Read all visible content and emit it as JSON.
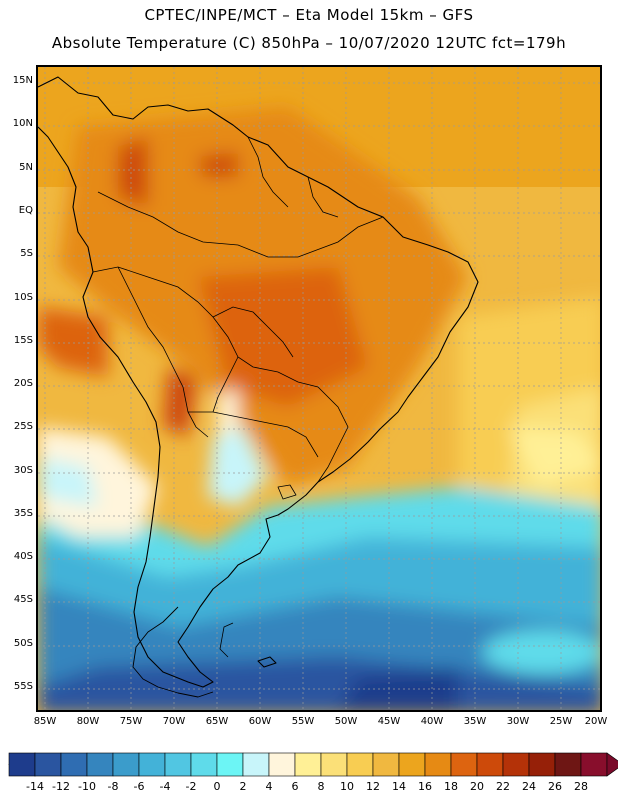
{
  "header": {
    "title_line1": "CPTEC/INPE/MCT –  Eta Model 15km – GFS",
    "title_line2": "Absolute Temperature (C) 850hPa – 10/07/2020 12UTC fct=179h"
  },
  "map": {
    "region": "South America",
    "lat_labels": [
      "15N",
      "10N",
      "5N",
      "EQ",
      "5S",
      "10S",
      "15S",
      "20S",
      "25S",
      "30S",
      "35S",
      "40S",
      "45S",
      "50S",
      "55S"
    ],
    "lon_labels": [
      "85W",
      "80W",
      "75W",
      "70W",
      "65W",
      "60W",
      "55W",
      "50W",
      "45W",
      "40W",
      "35W",
      "30W",
      "25W",
      "20W"
    ],
    "lat_values": [
      15,
      10,
      5,
      0,
      -5,
      -10,
      -15,
      -20,
      -25,
      -30,
      -35,
      -40,
      -45,
      -50,
      -55
    ],
    "lon_values": [
      -85,
      -80,
      -75,
      -70,
      -65,
      -60,
      -55,
      -50,
      -45,
      -40,
      -35,
      -30,
      -25,
      -20
    ]
  },
  "legend": {
    "labels": [
      "-14",
      "-12",
      "-10",
      "-8",
      "-6",
      "-4",
      "-2",
      "0",
      "2",
      "4",
      "6",
      "8",
      "10",
      "12",
      "14",
      "16",
      "18",
      "20",
      "22",
      "24",
      "26",
      "28"
    ],
    "colors": [
      "#1e3c8c",
      "#2a55a0",
      "#2f6db2",
      "#3585be",
      "#3b9ccb",
      "#43b2d8",
      "#51c6e2",
      "#5fdbea",
      "#6cf5f5",
      "#c8f5fa",
      "#fff5dc",
      "#fff096",
      "#fbe078",
      "#f8cd52",
      "#f0b840",
      "#eca51e",
      "#e68a14",
      "#dd6410",
      "#cd4a0a",
      "#b43208",
      "#962008",
      "#6e1614",
      "#880e2c"
    ],
    "under_color": "#13327a",
    "over_color": "#7a0a2a"
  }
}
